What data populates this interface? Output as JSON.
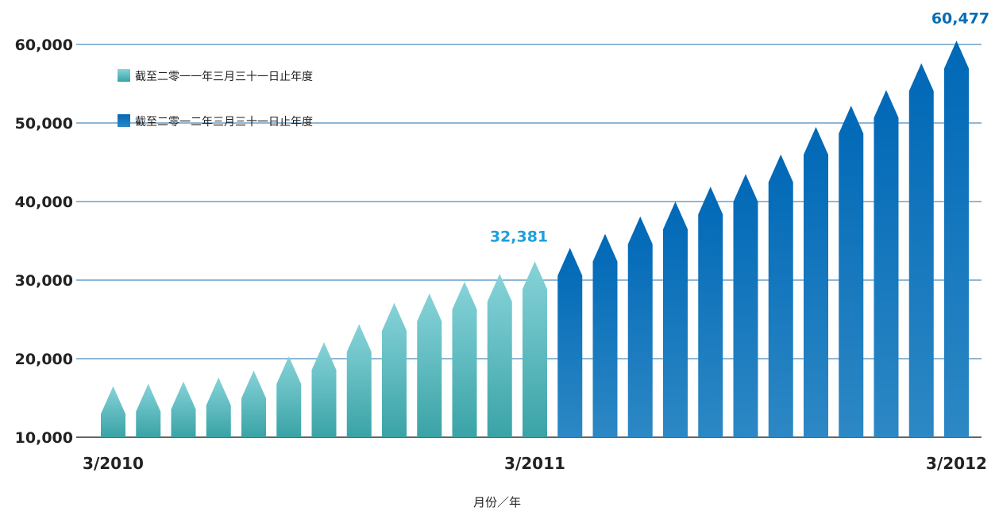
{
  "chart_data": {
    "type": "bar",
    "xlabel": "月份／年",
    "ylabel": "",
    "ylim": [
      10000,
      60000
    ],
    "yticks": [
      "10,000",
      "20,000",
      "30,000",
      "40,000",
      "50,000",
      "60,000"
    ],
    "yticks_values": [
      10000,
      20000,
      30000,
      40000,
      50000,
      60000
    ],
    "xtick_labels": [
      "3/2010",
      "3/2011",
      "3/2012"
    ],
    "grid": true,
    "legend_position": "top-left",
    "categories": [
      "3/2010",
      "4/2010",
      "5/2010",
      "6/2010",
      "7/2010",
      "8/2010",
      "9/2010",
      "10/2010",
      "11/2010",
      "12/2010",
      "1/2011",
      "2/2011",
      "3/2011",
      "4/2011",
      "5/2011",
      "6/2011",
      "7/2011",
      "8/2011",
      "9/2011",
      "10/2011",
      "11/2011",
      "12/2011",
      "1/2012",
      "2/2012",
      "3/2012"
    ],
    "series": [
      {
        "name": "截至二零一一年三月三十一日止年度",
        "color": "#3aa3a6",
        "values": [
          16500,
          16800,
          17100,
          17600,
          18500,
          20300,
          22100,
          24400,
          27100,
          28300,
          29800,
          30800,
          32381,
          null,
          null,
          null,
          null,
          null,
          null,
          null,
          null,
          null,
          null,
          null,
          null
        ]
      },
      {
        "name": "截至二零一二年三月三十一日止年度",
        "color": "#0a6db6",
        "values": [
          null,
          null,
          null,
          null,
          null,
          null,
          null,
          null,
          null,
          null,
          null,
          null,
          null,
          34100,
          35900,
          38100,
          40000,
          41900,
          43500,
          46000,
          49500,
          52200,
          54200,
          57600,
          60477
        ]
      }
    ],
    "annotations": [
      {
        "text": "32,381",
        "category": "3/2011",
        "color": "#1ba0dc"
      },
      {
        "text": "60,477",
        "category": "3/2012",
        "color": "#0a6db6"
      }
    ]
  }
}
